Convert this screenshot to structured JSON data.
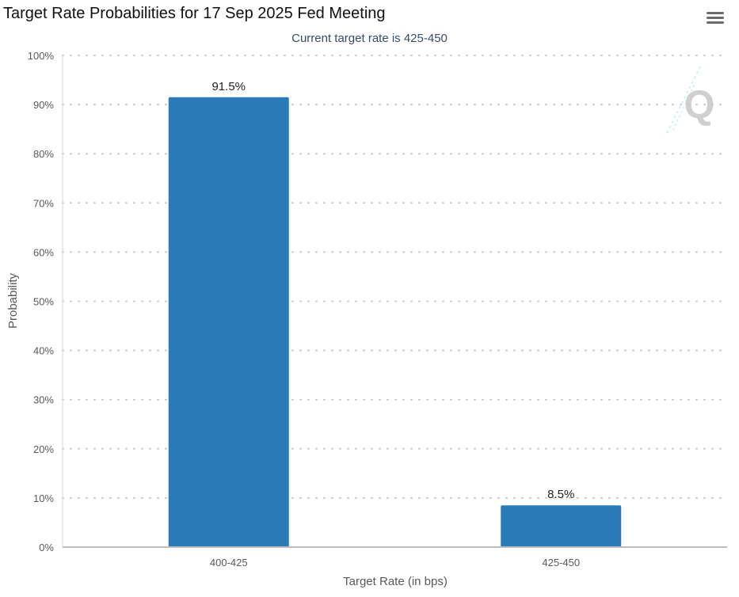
{
  "menu": {
    "icon": "hamburger-menu-icon"
  },
  "watermark": {
    "icon": "q-logo-icon",
    "letter": "Q"
  },
  "chart_data": {
    "type": "bar",
    "title": "Target Rate Probabilities for 17 Sep 2025 Fed Meeting",
    "subtitle": "Current target rate is 425-450",
    "xlabel": "Target Rate (in bps)",
    "ylabel": "Probability",
    "categories": [
      "400-425",
      "425-450"
    ],
    "values": [
      91.5,
      8.5
    ],
    "data_labels": [
      "91.5%",
      "8.5%"
    ],
    "ylim": [
      0,
      100
    ],
    "yticks": [
      0,
      10,
      20,
      30,
      40,
      50,
      60,
      70,
      80,
      90,
      100
    ],
    "ytick_labels": [
      "0%",
      "10%",
      "20%",
      "30%",
      "40%",
      "50%",
      "60%",
      "70%",
      "80%",
      "90%",
      "100%"
    ],
    "grid": "horizontal dotted",
    "legend": "none",
    "bar_color": "#2b7bb9"
  }
}
